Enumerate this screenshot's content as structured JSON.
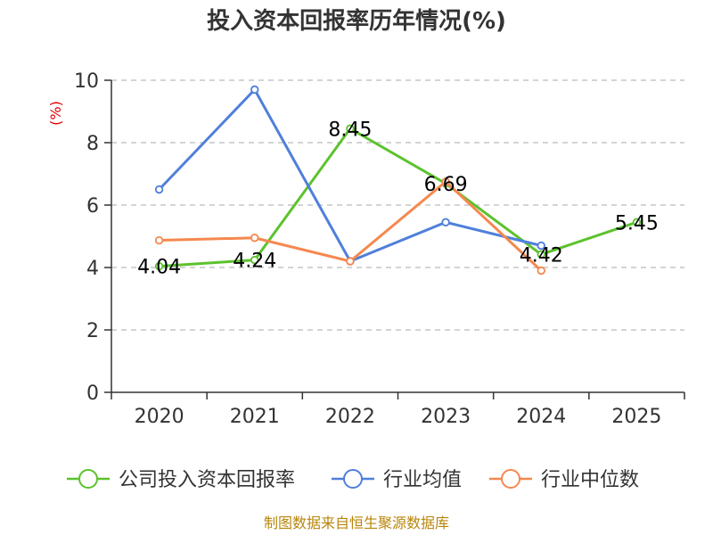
{
  "chart_data": {
    "type": "line",
    "title": "投入资本回报率历年情况(%)",
    "unit_label": "(%)",
    "categories": [
      "2020",
      "2021",
      "2022",
      "2023",
      "2024",
      "2025"
    ],
    "ylim": [
      0,
      10
    ],
    "yticks": [
      0,
      2,
      4,
      6,
      8,
      10
    ],
    "grid": true,
    "legend_position": "bottom",
    "series": [
      {
        "name": "公司投入资本回报率",
        "color": "#5cc22d",
        "values": [
          4.04,
          4.24,
          8.45,
          6.69,
          4.42,
          5.45
        ],
        "labels": [
          "4.04",
          "4.24",
          "8.45",
          "6.69",
          "4.42",
          "5.45"
        ]
      },
      {
        "name": "行业均值",
        "color": "#4f7fdb",
        "values": [
          6.5,
          9.7,
          4.2,
          5.45,
          4.7,
          null
        ]
      },
      {
        "name": "行业中位数",
        "color": "#f5884f",
        "values": [
          4.87,
          4.95,
          4.2,
          6.75,
          3.9,
          null
        ]
      }
    ]
  },
  "source_text": "制图数据来自恒生聚源数据库"
}
